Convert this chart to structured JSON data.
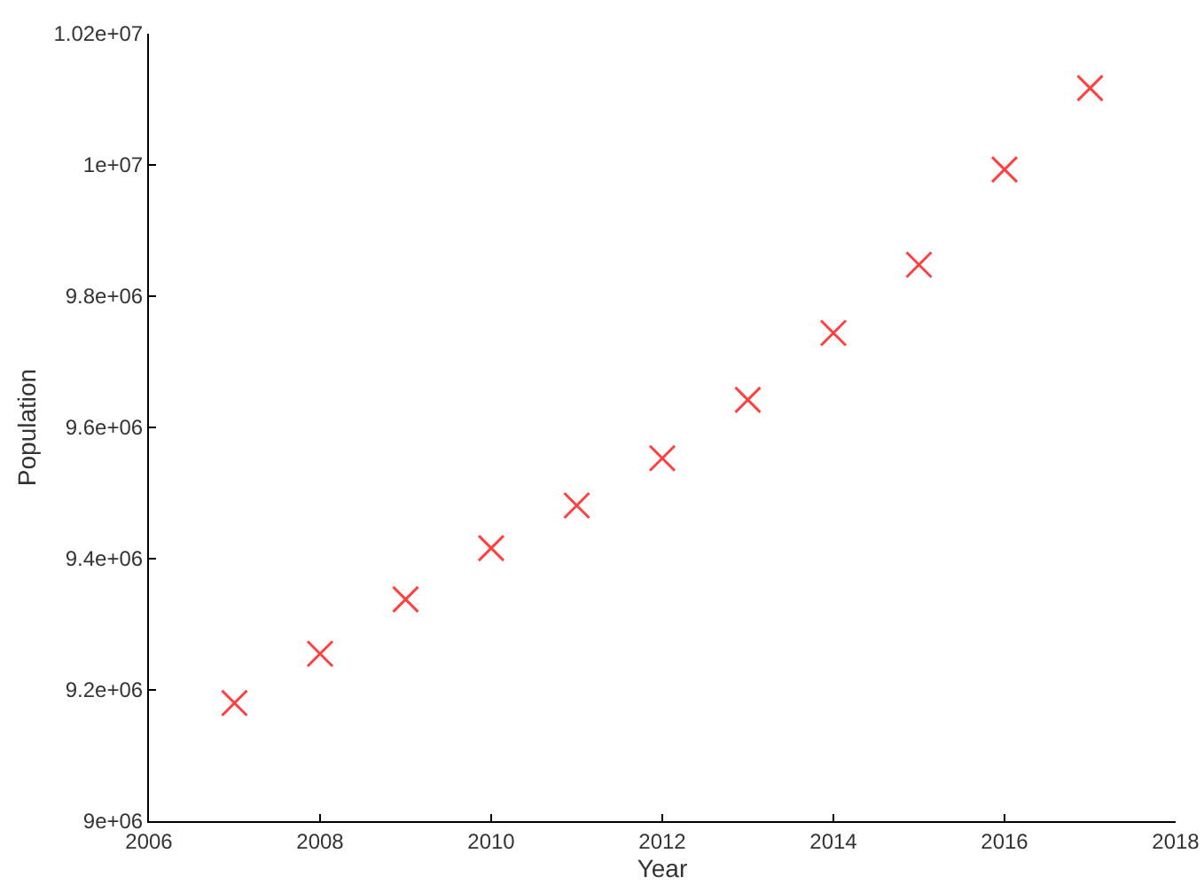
{
  "chart_data": {
    "type": "scatter",
    "xlabel": "Year",
    "ylabel": "Population",
    "x": [
      2007,
      2008,
      2009,
      2010,
      2011,
      2012,
      2013,
      2014,
      2015,
      2016,
      2017
    ],
    "series": [
      {
        "color": "#ff4040",
        "values": [
          9180000,
          9255000,
          9338000,
          9416000,
          9481000,
          9553000,
          9642000,
          9744000,
          9848000,
          9993000,
          10117000
        ]
      }
    ],
    "xlim": [
      2006,
      2018
    ],
    "xticks": [
      2006,
      2008,
      2010,
      2012,
      2014,
      2016,
      2018
    ],
    "ylim": [
      9000000,
      10200000
    ],
    "yticks": [
      {
        "value": 9000000,
        "label": "9e+06"
      },
      {
        "value": 9200000,
        "label": "9.2e+06"
      },
      {
        "value": 9400000,
        "label": "9.4e+06"
      },
      {
        "value": 9600000,
        "label": "9.6e+06"
      },
      {
        "value": 9800000,
        "label": "9.8e+06"
      },
      {
        "value": 10000000,
        "label": "1e+07"
      },
      {
        "value": 10200000,
        "label": "1.02e+07"
      }
    ],
    "grid": false,
    "marker": "cross"
  }
}
